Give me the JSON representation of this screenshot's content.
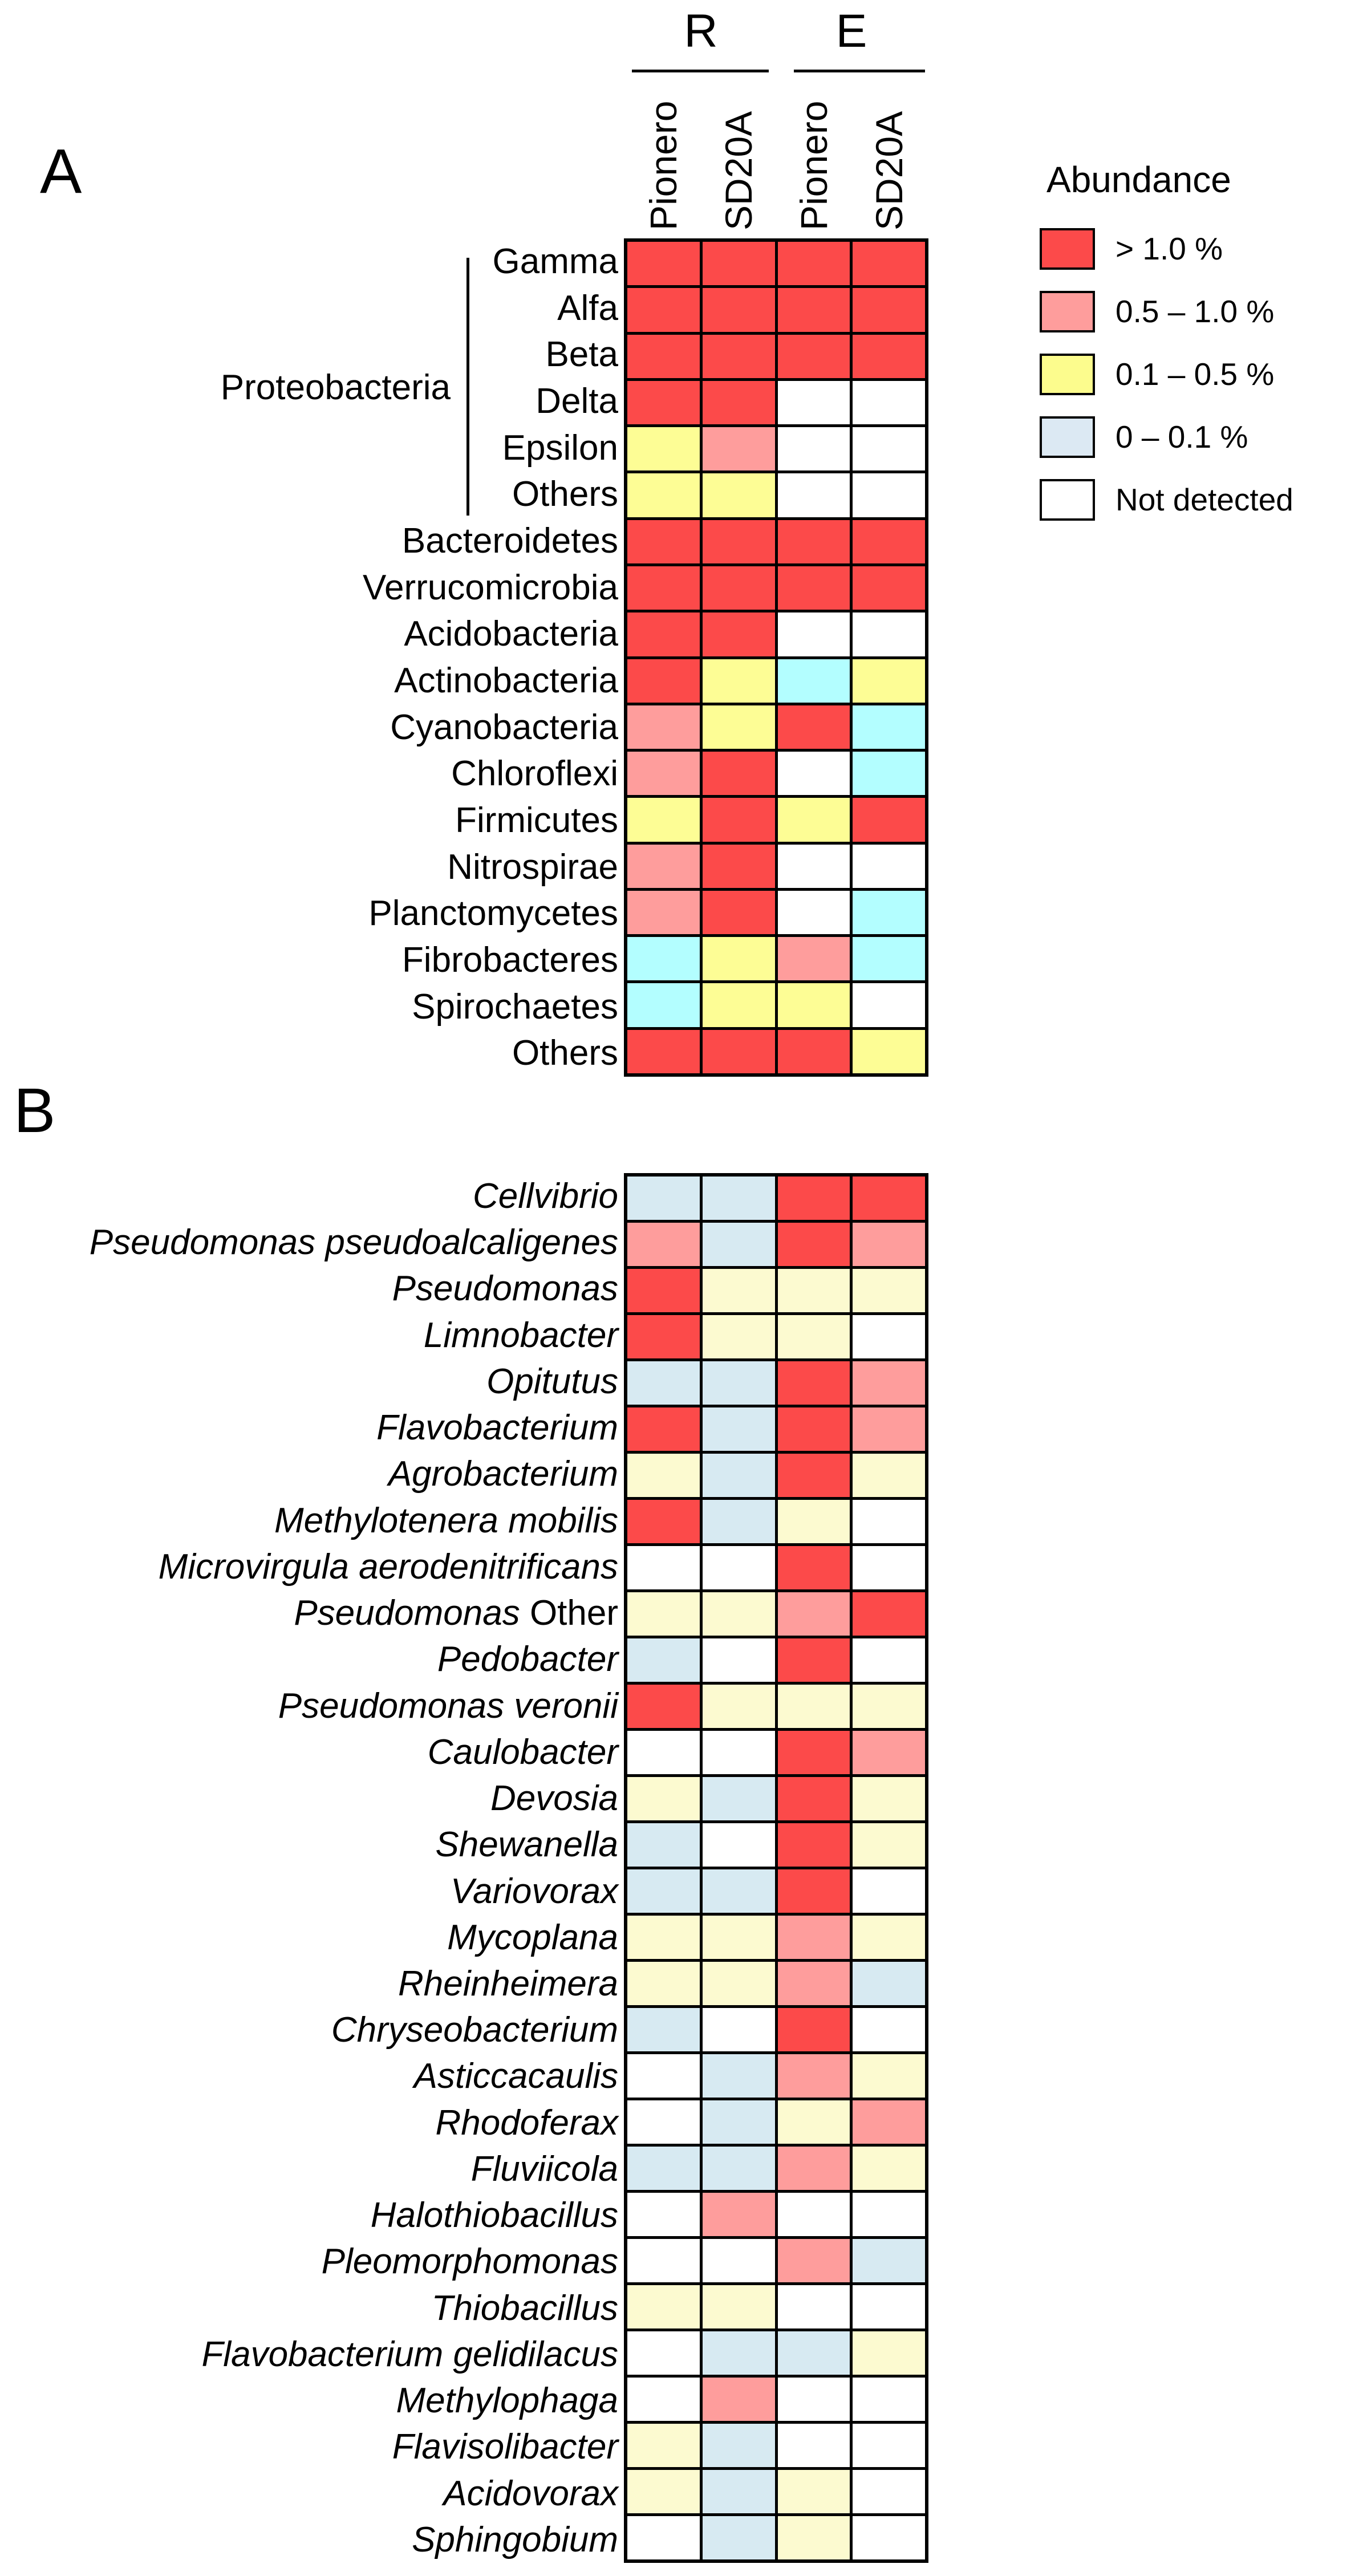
{
  "figure": {
    "panel_a_letter": "A",
    "panel_b_letter": "B"
  },
  "header": {
    "groups": [
      {
        "label": "R"
      },
      {
        "label": "E"
      }
    ],
    "columns": [
      "Pionero",
      "SD20A",
      "Pionero",
      "SD20A"
    ]
  },
  "legend": {
    "title": "Abundance",
    "items": [
      {
        "bin": "gt1",
        "label": "> 1.0 %"
      },
      {
        "bin": "b05_10",
        "label": "0.5 – 1.0 %"
      },
      {
        "bin": "b01_05",
        "label": "0.1 – 0.5 %"
      },
      {
        "bin": "b0_01",
        "label": "0 – 0.1 %"
      },
      {
        "bin": "nd",
        "label": "Not detected"
      }
    ],
    "swatch_colors": {
      "gt1": "#FC4A4A",
      "b05_10": "#FE9D9C",
      "b01_05": "#FCFC8D",
      "b0_01": "#DCE9F3",
      "nd": "#FFFFFF"
    }
  },
  "chart_data": [
    {
      "type": "heatmap",
      "panel_letter": "A",
      "title": "Phylum-level relative abundance",
      "row_group": {
        "label": "Proteobacteria",
        "rows": [
          "Gamma",
          "Alfa",
          "Beta",
          "Delta",
          "Epsilon",
          "Others"
        ]
      },
      "columns": [
        "R Pionero",
        "R SD20A",
        "E Pionero",
        "E SD20A"
      ],
      "bin_labels": {
        "gt1": "> 1.0 %",
        "b05_10": "0.5 – 1.0 %",
        "b01_05": "0.1 – 0.5 %",
        "b0_01": "0 – 0.1 %",
        "nd": "Not detected"
      },
      "palette": {
        "gt1": "#FC4A4A",
        "b05_10": "#FE9D9C",
        "b01_05": "#FDFD95",
        "b0_01": "#B3FEFF",
        "nd": "#FFFFFF"
      },
      "rows": [
        "Gamma",
        "Alfa",
        "Beta",
        "Delta",
        "Epsilon",
        "Others",
        "Bacteroidetes",
        "Verrucomicrobia",
        "Acidobacteria",
        "Actinobacteria",
        "Cyanobacteria",
        "Chloroflexi",
        "Firmicutes",
        "Nitrospirae",
        "Planctomycetes",
        "Fibrobacteres",
        "Spirochaetes",
        "Others"
      ],
      "values": [
        [
          "gt1",
          "gt1",
          "gt1",
          "gt1"
        ],
        [
          "gt1",
          "gt1",
          "gt1",
          "gt1"
        ],
        [
          "gt1",
          "gt1",
          "gt1",
          "gt1"
        ],
        [
          "gt1",
          "gt1",
          "nd",
          "nd"
        ],
        [
          "b01_05",
          "b05_10",
          "nd",
          "nd"
        ],
        [
          "b01_05",
          "b01_05",
          "nd",
          "nd"
        ],
        [
          "gt1",
          "gt1",
          "gt1",
          "gt1"
        ],
        [
          "gt1",
          "gt1",
          "gt1",
          "gt1"
        ],
        [
          "gt1",
          "gt1",
          "nd",
          "nd"
        ],
        [
          "gt1",
          "b01_05",
          "b0_01",
          "b01_05"
        ],
        [
          "b05_10",
          "b01_05",
          "gt1",
          "b0_01"
        ],
        [
          "b05_10",
          "gt1",
          "nd",
          "b0_01"
        ],
        [
          "b01_05",
          "gt1",
          "b01_05",
          "gt1"
        ],
        [
          "b05_10",
          "gt1",
          "nd",
          "nd"
        ],
        [
          "b05_10",
          "gt1",
          "nd",
          "b0_01"
        ],
        [
          "b0_01",
          "b01_05",
          "b05_10",
          "b0_01"
        ],
        [
          "b0_01",
          "b01_05",
          "b01_05",
          "nd"
        ],
        [
          "gt1",
          "gt1",
          "gt1",
          "b01_05"
        ]
      ]
    },
    {
      "type": "heatmap",
      "panel_letter": "B",
      "title": "Genus/species-level relative abundance",
      "columns": [
        "R Pionero",
        "R SD20A",
        "E Pionero",
        "E SD20A"
      ],
      "bin_labels": {
        "gt1": "> 1.0 %",
        "b05_10": "0.5 – 1.0 %",
        "b01_05": "0.1 – 0.5 %",
        "b0_01": "0 – 0.1 %",
        "nd": "Not detected"
      },
      "palette": {
        "gt1": "#FC4A4A",
        "b05_10": "#FE9D9C",
        "b01_05": "#FCFAD0",
        "b0_01": "#D7EAF2",
        "nd": "#FFFFFF"
      },
      "rows": [
        "Cellvibrio",
        "Pseudomonas pseudoalcaligenes",
        "Pseudomonas",
        "Limnobacter",
        "Opitutus",
        "Flavobacterium",
        "Agrobacterium",
        "Methylotenera mobilis",
        "Microvirgula aerodenitrificans",
        "Pseudomonas Other",
        "Pedobacter",
        "Pseudomonas veronii",
        "Caulobacter",
        "Devosia",
        "Shewanella",
        "Variovorax",
        "Mycoplana",
        "Rheinheimera",
        "Chryseobacterium",
        "Asticcacaulis",
        "Rhodoferax",
        "Fluviicola",
        "Halothiobacillus",
        "Pleomorphomonas",
        "Thiobacillus",
        "Flavobacterium gelidilacus",
        "Methylophaga",
        "Flavisolibacter",
        "Acidovorax",
        "Sphingobium"
      ],
      "row_label_plain_suffix": {
        "9": "Other"
      },
      "values": [
        [
          "b0_01",
          "b0_01",
          "gt1",
          "gt1"
        ],
        [
          "b05_10",
          "b0_01",
          "gt1",
          "b05_10"
        ],
        [
          "gt1",
          "b01_05",
          "b01_05",
          "b01_05"
        ],
        [
          "gt1",
          "b01_05",
          "b01_05",
          "nd"
        ],
        [
          "b0_01",
          "b0_01",
          "gt1",
          "b05_10"
        ],
        [
          "gt1",
          "b0_01",
          "gt1",
          "b05_10"
        ],
        [
          "b01_05",
          "b0_01",
          "gt1",
          "b01_05"
        ],
        [
          "gt1",
          "b0_01",
          "b01_05",
          "nd"
        ],
        [
          "nd",
          "nd",
          "gt1",
          "nd"
        ],
        [
          "b01_05",
          "b01_05",
          "b05_10",
          "gt1"
        ],
        [
          "b0_01",
          "nd",
          "gt1",
          "nd"
        ],
        [
          "gt1",
          "b01_05",
          "b01_05",
          "b01_05"
        ],
        [
          "nd",
          "nd",
          "gt1",
          "b05_10"
        ],
        [
          "b01_05",
          "b0_01",
          "gt1",
          "b01_05"
        ],
        [
          "b0_01",
          "nd",
          "gt1",
          "b01_05"
        ],
        [
          "b0_01",
          "b0_01",
          "gt1",
          "nd"
        ],
        [
          "b01_05",
          "b01_05",
          "b05_10",
          "b01_05"
        ],
        [
          "b01_05",
          "b01_05",
          "b05_10",
          "b0_01"
        ],
        [
          "b0_01",
          "nd",
          "gt1",
          "nd"
        ],
        [
          "nd",
          "b0_01",
          "b05_10",
          "b01_05"
        ],
        [
          "nd",
          "b0_01",
          "b01_05",
          "b05_10"
        ],
        [
          "b0_01",
          "b0_01",
          "b05_10",
          "b01_05"
        ],
        [
          "nd",
          "b05_10",
          "nd",
          "nd"
        ],
        [
          "nd",
          "nd",
          "b05_10",
          "b0_01"
        ],
        [
          "b01_05",
          "b01_05",
          "nd",
          "nd"
        ],
        [
          "nd",
          "b0_01",
          "b0_01",
          "b01_05"
        ],
        [
          "nd",
          "b05_10",
          "nd",
          "nd"
        ],
        [
          "b01_05",
          "b0_01",
          "nd",
          "nd"
        ],
        [
          "b01_05",
          "b0_01",
          "b01_05",
          "nd"
        ],
        [
          "nd",
          "b0_01",
          "b01_05",
          "nd"
        ]
      ]
    }
  ]
}
